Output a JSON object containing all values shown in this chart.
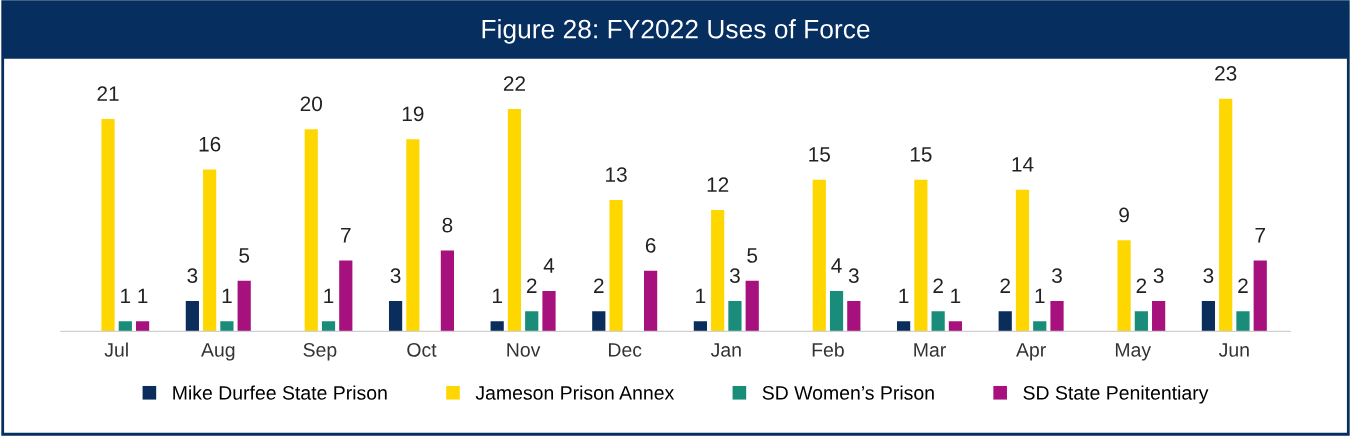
{
  "chart_data": {
    "type": "bar",
    "title": "Figure 28: FY2022 Uses of Force",
    "categories": [
      "Jul",
      "Aug",
      "Sep",
      "Oct",
      "Nov",
      "Dec",
      "Jan",
      "Feb",
      "Mar",
      "Apr",
      "May",
      "Jun"
    ],
    "series": [
      {
        "name": "Mike Durfee State Prison",
        "color": "#0b2d5b",
        "values": [
          0,
          3,
          0,
          3,
          1,
          2,
          1,
          0,
          1,
          2,
          0,
          3
        ],
        "value_labels": [
          null,
          "3",
          null,
          "3",
          "1",
          "2",
          "1",
          null,
          "1",
          "2",
          null,
          "3"
        ]
      },
      {
        "name": "Jameson Prison Annex",
        "color": "#ffd700",
        "values": [
          21,
          16,
          20,
          19,
          22,
          13,
          12,
          15,
          15,
          14,
          9,
          23
        ],
        "value_labels": [
          "21",
          "16",
          "20",
          "19",
          "22",
          "13",
          "12",
          "15",
          "15",
          "14",
          "9",
          "23"
        ]
      },
      {
        "name": "SD Women’s Prison",
        "color": "#1a8c7a",
        "values": [
          1,
          1,
          1,
          0,
          2,
          0,
          3,
          4,
          2,
          1,
          2,
          2
        ],
        "value_labels": [
          "1",
          "1",
          "1",
          null,
          "2",
          null,
          "3",
          "4",
          "2",
          "1",
          "2",
          "2"
        ]
      },
      {
        "name": "SD State Penitentiary",
        "color": "#a6117e",
        "values": [
          1,
          5,
          7,
          8,
          4,
          6,
          5,
          3,
          1,
          3,
          3,
          7
        ],
        "value_labels": [
          "1",
          "5",
          "7",
          "8",
          "4",
          "6",
          "5",
          "3",
          "1",
          "3",
          "3",
          "7"
        ]
      }
    ],
    "tick_labels": "x",
    "grid": false,
    "legend": "bottom"
  }
}
